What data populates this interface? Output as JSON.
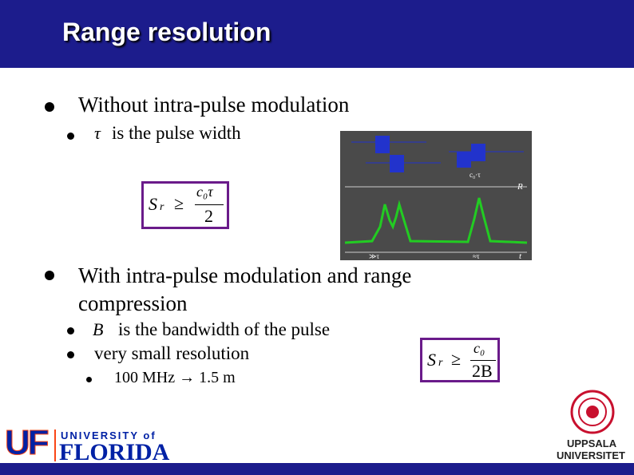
{
  "header": {
    "title": "Range resolution"
  },
  "bullets": [
    {
      "text": "Without intra-pulse modulation",
      "sub": [
        {
          "symbol": "τ",
          "text": "is the pulse width"
        }
      ]
    },
    {
      "text": "With intra-pulse modulation and range compression",
      "sub": [
        {
          "symbol": "B",
          "text": "is the bandwidth of the pulse"
        },
        {
          "text": "very small resolution",
          "sub": [
            {
              "text": "100 MHz → 1.5 m"
            }
          ]
        }
      ]
    }
  ],
  "formulas": [
    {
      "lhs": "S",
      "lhs_sub": "r",
      "relation": "≥",
      "numerator": "c₀τ",
      "denominator": "2"
    },
    {
      "lhs": "S",
      "lhs_sub": "r",
      "relation": "≥",
      "numerator": "c₀",
      "denominator": "2B"
    }
  ],
  "figure": {
    "range_axis": "R",
    "time_axis": "t",
    "spacing_label": "c₀·τ",
    "gap_labels": [
      "≫τ",
      "≈τ"
    ]
  },
  "logos": {
    "left": {
      "mark": "UF",
      "line1": "UNIVERSITY of",
      "line2": "FLORIDA"
    },
    "right": {
      "line1": "UPPSALA",
      "line2": "UNIVERSITET"
    }
  }
}
